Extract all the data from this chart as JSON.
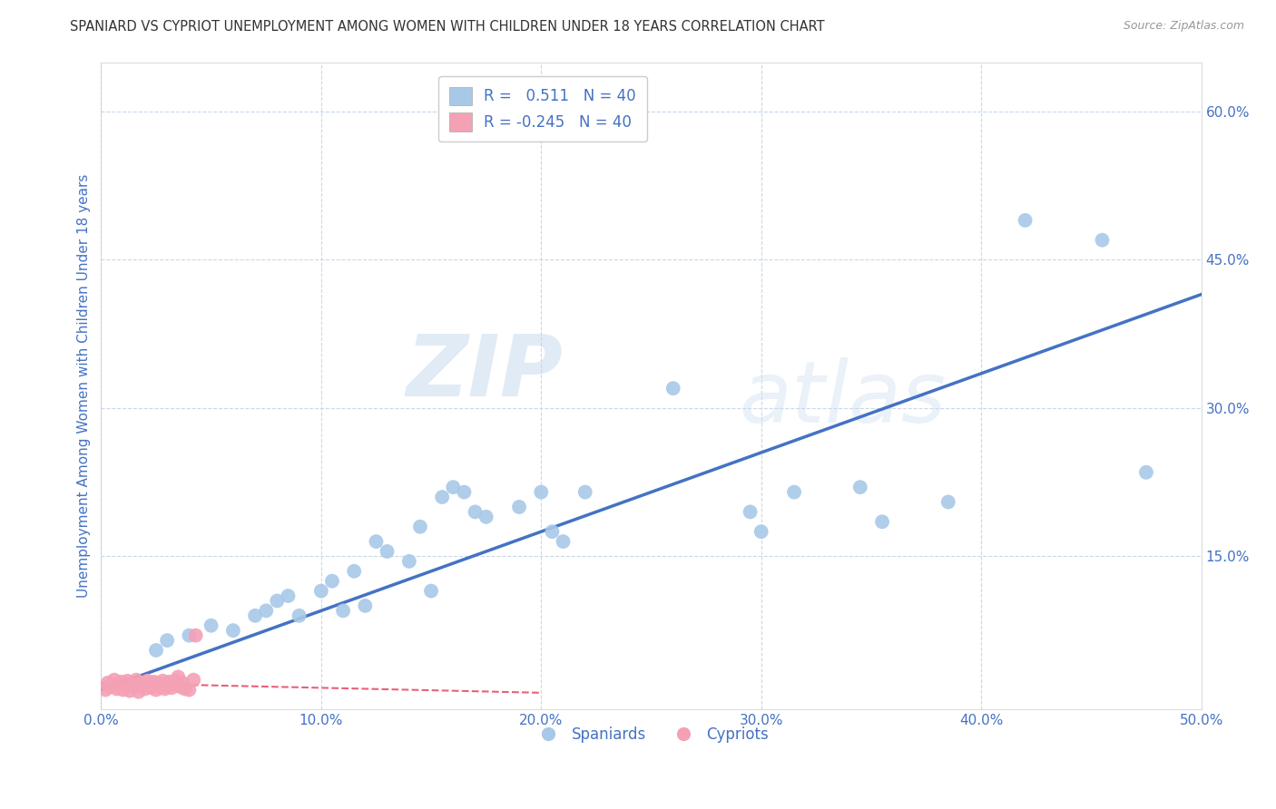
{
  "title": "SPANIARD VS CYPRIOT UNEMPLOYMENT AMONG WOMEN WITH CHILDREN UNDER 18 YEARS CORRELATION CHART",
  "source": "Source: ZipAtlas.com",
  "ylabel": "Unemployment Among Women with Children Under 18 years",
  "xlabel": "",
  "xlim": [
    0.0,
    0.5
  ],
  "ylim": [
    -0.005,
    0.65
  ],
  "xticks": [
    0.0,
    0.1,
    0.2,
    0.3,
    0.4,
    0.5
  ],
  "yticks": [
    0.15,
    0.3,
    0.45,
    0.6
  ],
  "ytick_labels": [
    "15.0%",
    "30.0%",
    "45.0%",
    "60.0%"
  ],
  "xtick_labels": [
    "0.0%",
    "10.0%",
    "20.0%",
    "30.0%",
    "40.0%",
    "50.0%"
  ],
  "legend_r_blue": "0.511",
  "legend_r_pink": "-0.245",
  "legend_n": "40",
  "blue_color": "#A8C8E8",
  "pink_color": "#F4A0B5",
  "blue_line_color": "#4472C4",
  "pink_line_color": "#E8607A",
  "background_color": "#FFFFFF",
  "grid_color": "#C8D8EA",
  "watermark_zip": "ZIP",
  "watermark_atlas": "atlas",
  "spaniards_x": [
    0.025,
    0.03,
    0.04,
    0.05,
    0.06,
    0.07,
    0.075,
    0.08,
    0.085,
    0.09,
    0.1,
    0.105,
    0.11,
    0.115,
    0.12,
    0.125,
    0.13,
    0.14,
    0.145,
    0.15,
    0.155,
    0.16,
    0.165,
    0.17,
    0.175,
    0.19,
    0.2,
    0.205,
    0.21,
    0.22,
    0.26,
    0.295,
    0.3,
    0.315,
    0.345,
    0.355,
    0.385,
    0.42,
    0.455,
    0.475
  ],
  "spaniards_y": [
    0.055,
    0.065,
    0.07,
    0.08,
    0.075,
    0.09,
    0.095,
    0.105,
    0.11,
    0.09,
    0.115,
    0.125,
    0.095,
    0.135,
    0.1,
    0.165,
    0.155,
    0.145,
    0.18,
    0.115,
    0.21,
    0.22,
    0.215,
    0.195,
    0.19,
    0.2,
    0.215,
    0.175,
    0.165,
    0.215,
    0.32,
    0.195,
    0.175,
    0.215,
    0.22,
    0.185,
    0.205,
    0.49,
    0.47,
    0.235
  ],
  "cypriots_x": [
    0.002,
    0.003,
    0.004,
    0.005,
    0.006,
    0.007,
    0.008,
    0.009,
    0.01,
    0.011,
    0.012,
    0.013,
    0.014,
    0.015,
    0.016,
    0.017,
    0.018,
    0.019,
    0.02,
    0.021,
    0.022,
    0.023,
    0.024,
    0.025,
    0.026,
    0.027,
    0.028,
    0.029,
    0.03,
    0.031,
    0.032,
    0.033,
    0.034,
    0.035,
    0.036,
    0.037,
    0.038,
    0.04,
    0.042,
    0.043
  ],
  "cypriots_y": [
    0.015,
    0.022,
    0.018,
    0.02,
    0.025,
    0.016,
    0.019,
    0.023,
    0.015,
    0.021,
    0.024,
    0.014,
    0.02,
    0.018,
    0.025,
    0.013,
    0.022,
    0.019,
    0.016,
    0.024,
    0.02,
    0.017,
    0.023,
    0.015,
    0.021,
    0.018,
    0.024,
    0.016,
    0.019,
    0.023,
    0.017,
    0.021,
    0.024,
    0.028,
    0.018,
    0.022,
    0.016,
    0.015,
    0.025,
    0.07
  ],
  "blue_trend_x": [
    0.0,
    0.5
  ],
  "blue_trend_y": [
    0.015,
    0.415
  ],
  "pink_trend_x": [
    0.0,
    0.2
  ],
  "pink_trend_y": [
    0.022,
    0.012
  ]
}
